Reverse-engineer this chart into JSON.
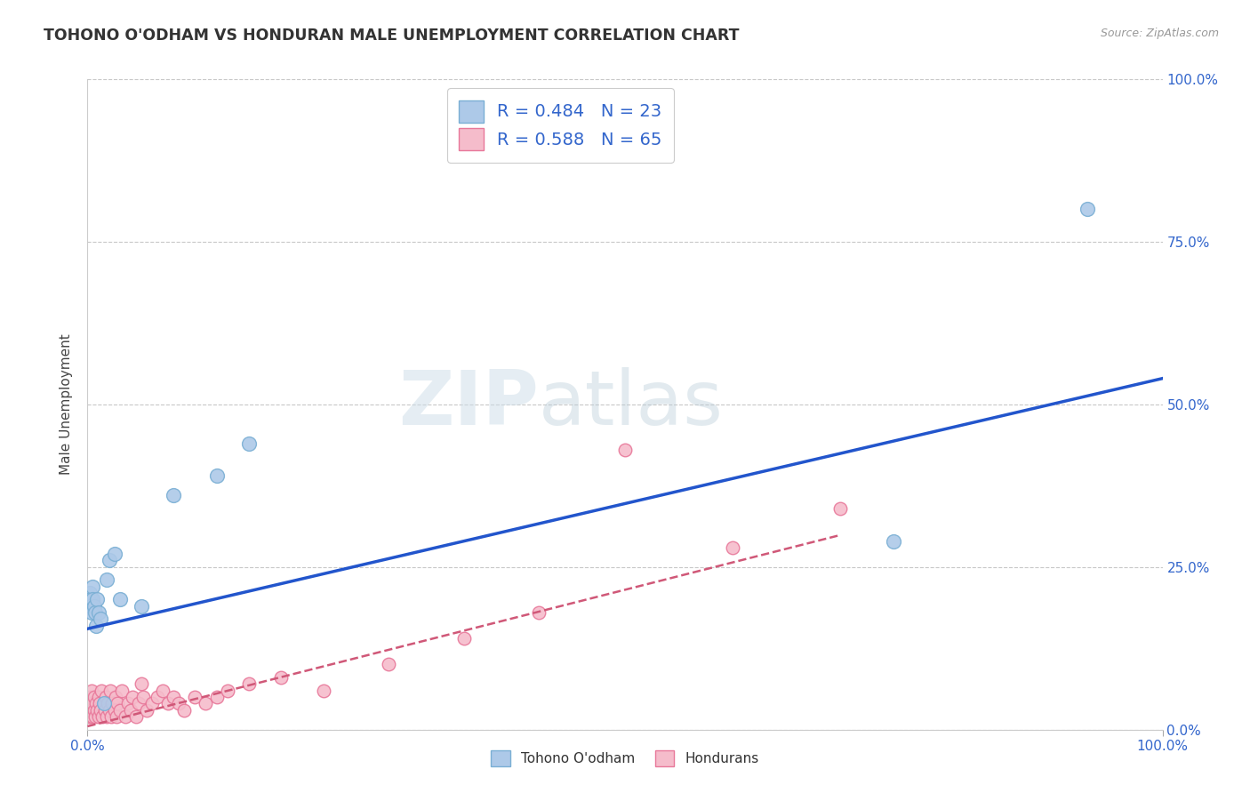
{
  "title": "TOHONO O'ODHAM VS HONDURAN MALE UNEMPLOYMENT CORRELATION CHART",
  "source": "Source: ZipAtlas.com",
  "ylabel": "Male Unemployment",
  "xlim": [
    0,
    1.0
  ],
  "ylim": [
    0,
    1.0
  ],
  "ytick_values": [
    0.0,
    0.25,
    0.5,
    0.75,
    1.0
  ],
  "ytick_labels": [
    "0.0%",
    "25.0%",
    "50.0%",
    "75.0%",
    "100.0%"
  ],
  "xtick_values": [
    0.0,
    1.0
  ],
  "xtick_labels": [
    "0.0%",
    "100.0%"
  ],
  "grid_color": "#c8c8c8",
  "background_color": "#ffffff",
  "watermark_zip": "ZIP",
  "watermark_atlas": "atlas",
  "tohono_color_fill": "#adc9e8",
  "tohono_color_edge": "#7aafd4",
  "honduran_color_fill": "#f5bccb",
  "honduran_color_edge": "#e8789a",
  "tohono_R": "0.484",
  "tohono_N": "23",
  "honduran_R": "0.588",
  "honduran_N": "65",
  "tohono_line_color": "#2255cc",
  "honduran_line_color": "#d05878",
  "tohono_x": [
    0.002,
    0.003,
    0.003,
    0.004,
    0.005,
    0.005,
    0.006,
    0.007,
    0.008,
    0.009,
    0.01,
    0.012,
    0.015,
    0.018,
    0.02,
    0.025,
    0.03,
    0.05,
    0.08,
    0.12,
    0.15,
    0.75,
    0.93
  ],
  "tohono_y": [
    0.21,
    0.2,
    0.19,
    0.18,
    0.22,
    0.2,
    0.19,
    0.18,
    0.16,
    0.2,
    0.18,
    0.17,
    0.04,
    0.23,
    0.26,
    0.27,
    0.2,
    0.19,
    0.36,
    0.39,
    0.44,
    0.29,
    0.8
  ],
  "honduran_x": [
    0.001,
    0.001,
    0.002,
    0.002,
    0.003,
    0.003,
    0.004,
    0.004,
    0.005,
    0.005,
    0.006,
    0.006,
    0.007,
    0.008,
    0.009,
    0.01,
    0.01,
    0.011,
    0.012,
    0.013,
    0.014,
    0.015,
    0.016,
    0.017,
    0.018,
    0.019,
    0.02,
    0.021,
    0.022,
    0.023,
    0.025,
    0.026,
    0.027,
    0.028,
    0.03,
    0.032,
    0.035,
    0.038,
    0.04,
    0.042,
    0.045,
    0.048,
    0.05,
    0.052,
    0.055,
    0.06,
    0.065,
    0.07,
    0.075,
    0.08,
    0.085,
    0.09,
    0.1,
    0.11,
    0.12,
    0.13,
    0.15,
    0.18,
    0.22,
    0.28,
    0.35,
    0.42,
    0.5,
    0.6,
    0.7
  ],
  "honduran_y": [
    0.02,
    0.04,
    0.03,
    0.05,
    0.02,
    0.04,
    0.03,
    0.06,
    0.02,
    0.04,
    0.03,
    0.05,
    0.02,
    0.04,
    0.03,
    0.02,
    0.05,
    0.04,
    0.03,
    0.06,
    0.02,
    0.04,
    0.03,
    0.05,
    0.02,
    0.04,
    0.03,
    0.06,
    0.02,
    0.04,
    0.03,
    0.05,
    0.02,
    0.04,
    0.03,
    0.06,
    0.02,
    0.04,
    0.03,
    0.05,
    0.02,
    0.04,
    0.07,
    0.05,
    0.03,
    0.04,
    0.05,
    0.06,
    0.04,
    0.05,
    0.04,
    0.03,
    0.05,
    0.04,
    0.05,
    0.06,
    0.07,
    0.08,
    0.06,
    0.1,
    0.14,
    0.18,
    0.43,
    0.28,
    0.34
  ],
  "legend_label_tohono": "Tohono O'odham",
  "legend_label_honduran": "Hondurans",
  "tohono_line_intercept": 0.155,
  "tohono_line_slope": 0.385,
  "honduran_line_intercept": 0.005,
  "honduran_line_slope": 0.42,
  "honduran_line_xmax": 0.7
}
